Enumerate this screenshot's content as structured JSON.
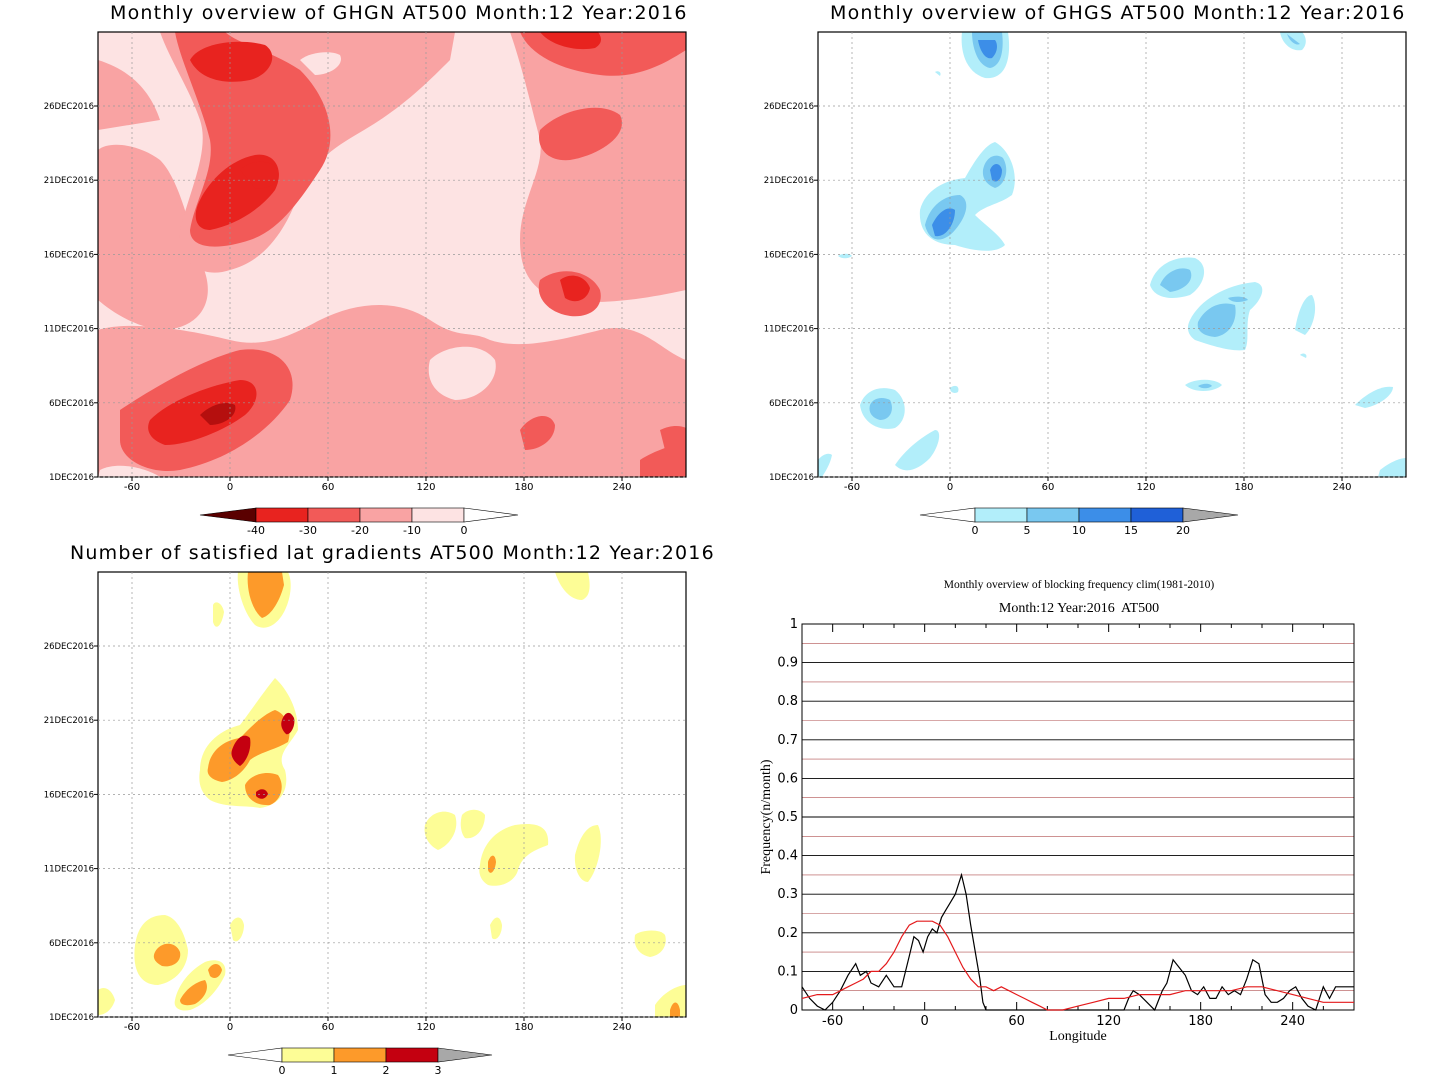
{
  "chart_data": [
    {
      "type": "heatmap",
      "title": "Monthly overview of GHGN AT500 Month:12 Year:2016",
      "x_ticks": [
        "-60",
        "0",
        "60",
        "120",
        "180",
        "240"
      ],
      "y_ticks": [
        "26DEC2016",
        "21DEC2016",
        "16DEC2016",
        "11DEC2016",
        "6DEC2016",
        "1DEC2016"
      ],
      "colorbar": {
        "labels": [
          "-40",
          "-30",
          "-20",
          "-10",
          "0"
        ],
        "colors": [
          "#8b0000",
          "#e8231f",
          "#f25a58",
          "#f9a3a3",
          "#fde3e3"
        ]
      }
    },
    {
      "type": "heatmap",
      "title": "Monthly overview of GHGS AT500 Month:12 Year:2016",
      "x_ticks": [
        "-60",
        "0",
        "60",
        "120",
        "180",
        "240"
      ],
      "y_ticks": [
        "26DEC2016",
        "21DEC2016",
        "16DEC2016",
        "11DEC2016",
        "6DEC2016",
        "1DEC2016"
      ],
      "colorbar": {
        "labels": [
          "0",
          "5",
          "10",
          "15",
          "20"
        ],
        "colors": [
          "#b2eefa",
          "#79c8f0",
          "#3c8ee8",
          "#1f60d8",
          "#a8a8a8"
        ]
      }
    },
    {
      "type": "heatmap",
      "title": "Number of satisfied lat gradients AT500 Month:12 Year:2016",
      "x_ticks": [
        "-60",
        "0",
        "60",
        "120",
        "180",
        "240"
      ],
      "y_ticks": [
        "26DEC2016",
        "21DEC2016",
        "16DEC2016",
        "11DEC2016",
        "6DEC2016",
        "1DEC2016"
      ],
      "colorbar": {
        "labels": [
          "0",
          "1",
          "2",
          "3"
        ],
        "colors": [
          "#fdfd96",
          "#fd9a2a",
          "#c40010",
          "#a8a8a8"
        ]
      }
    },
    {
      "type": "line",
      "title": "Monthly overview of blocking frequency clim(1981-2010)",
      "subtitle": "Month:12 Year:2016  AT500",
      "xlabel": "Longitude",
      "ylabel": "Frequency(n/month)",
      "x_ticks": [
        "-60",
        "0",
        "60",
        "120",
        "180",
        "240"
      ],
      "y_ticks": [
        "0",
        "0.1",
        "0.2",
        "0.3",
        "0.4",
        "0.5",
        "0.6",
        "0.7",
        "0.8",
        "0.9",
        "1"
      ],
      "xlim": [
        -80,
        280
      ],
      "ylim": [
        0,
        1
      ],
      "series": [
        {
          "color": "#000000",
          "values": [
            [
              -80,
              0.06
            ],
            [
              -75,
              0.03
            ],
            [
              -70,
              0.01
            ],
            [
              -65,
              0.0
            ],
            [
              -60,
              0.02
            ],
            [
              -55,
              0.05
            ],
            [
              -50,
              0.09
            ],
            [
              -45,
              0.12
            ],
            [
              -42,
              0.09
            ],
            [
              -38,
              0.1
            ],
            [
              -35,
              0.07
            ],
            [
              -30,
              0.06
            ],
            [
              -25,
              0.09
            ],
            [
              -20,
              0.06
            ],
            [
              -15,
              0.06
            ],
            [
              -10,
              0.14
            ],
            [
              -7,
              0.19
            ],
            [
              -4,
              0.18
            ],
            [
              -1,
              0.15
            ],
            [
              2,
              0.19
            ],
            [
              5,
              0.21
            ],
            [
              8,
              0.2
            ],
            [
              11,
              0.24
            ],
            [
              14,
              0.26
            ],
            [
              17,
              0.28
            ],
            [
              20,
              0.3
            ],
            [
              24,
              0.35
            ],
            [
              27,
              0.3
            ],
            [
              30,
              0.22
            ],
            [
              33,
              0.15
            ],
            [
              36,
              0.08
            ],
            [
              38,
              0.02
            ],
            [
              40,
              0.0
            ],
            [
              130,
              0.0
            ],
            [
              133,
              0.03
            ],
            [
              136,
              0.05
            ],
            [
              140,
              0.04
            ],
            [
              145,
              0.02
            ],
            [
              150,
              0.0
            ],
            [
              155,
              0.05
            ],
            [
              158,
              0.07
            ],
            [
              162,
              0.13
            ],
            [
              166,
              0.11
            ],
            [
              170,
              0.09
            ],
            [
              174,
              0.05
            ],
            [
              178,
              0.04
            ],
            [
              182,
              0.06
            ],
            [
              186,
              0.03
            ],
            [
              190,
              0.03
            ],
            [
              194,
              0.06
            ],
            [
              198,
              0.04
            ],
            [
              202,
              0.05
            ],
            [
              206,
              0.04
            ],
            [
              210,
              0.08
            ],
            [
              214,
              0.13
            ],
            [
              218,
              0.12
            ],
            [
              222,
              0.04
            ],
            [
              226,
              0.02
            ],
            [
              230,
              0.02
            ],
            [
              234,
              0.03
            ],
            [
              238,
              0.05
            ],
            [
              242,
              0.06
            ],
            [
              246,
              0.03
            ],
            [
              250,
              0.01
            ],
            [
              255,
              0.0
            ],
            [
              260,
              0.06
            ],
            [
              264,
              0.03
            ],
            [
              268,
              0.06
            ],
            [
              280,
              0.06
            ]
          ]
        },
        {
          "color": "#e41a1c",
          "values": [
            [
              -80,
              0.03
            ],
            [
              -70,
              0.04
            ],
            [
              -60,
              0.04
            ],
            [
              -50,
              0.06
            ],
            [
              -45,
              0.07
            ],
            [
              -40,
              0.08
            ],
            [
              -35,
              0.1
            ],
            [
              -30,
              0.1
            ],
            [
              -25,
              0.12
            ],
            [
              -20,
              0.15
            ],
            [
              -15,
              0.19
            ],
            [
              -10,
              0.22
            ],
            [
              -5,
              0.23
            ],
            [
              0,
              0.23
            ],
            [
              5,
              0.23
            ],
            [
              10,
              0.22
            ],
            [
              15,
              0.19
            ],
            [
              20,
              0.15
            ],
            [
              25,
              0.11
            ],
            [
              30,
              0.08
            ],
            [
              35,
              0.06
            ],
            [
              40,
              0.06
            ],
            [
              45,
              0.05
            ],
            [
              50,
              0.06
            ],
            [
              55,
              0.05
            ],
            [
              60,
              0.04
            ],
            [
              65,
              0.03
            ],
            [
              70,
              0.02
            ],
            [
              75,
              0.01
            ],
            [
              80,
              0.0
            ],
            [
              90,
              0.0
            ],
            [
              100,
              0.01
            ],
            [
              110,
              0.02
            ],
            [
              120,
              0.03
            ],
            [
              130,
              0.03
            ],
            [
              140,
              0.04
            ],
            [
              150,
              0.04
            ],
            [
              160,
              0.04
            ],
            [
              170,
              0.05
            ],
            [
              180,
              0.05
            ],
            [
              190,
              0.05
            ],
            [
              200,
              0.05
            ],
            [
              210,
              0.06
            ],
            [
              220,
              0.06
            ],
            [
              230,
              0.05
            ],
            [
              240,
              0.04
            ],
            [
              250,
              0.03
            ],
            [
              260,
              0.02
            ],
            [
              270,
              0.02
            ],
            [
              280,
              0.02
            ]
          ]
        }
      ]
    }
  ]
}
